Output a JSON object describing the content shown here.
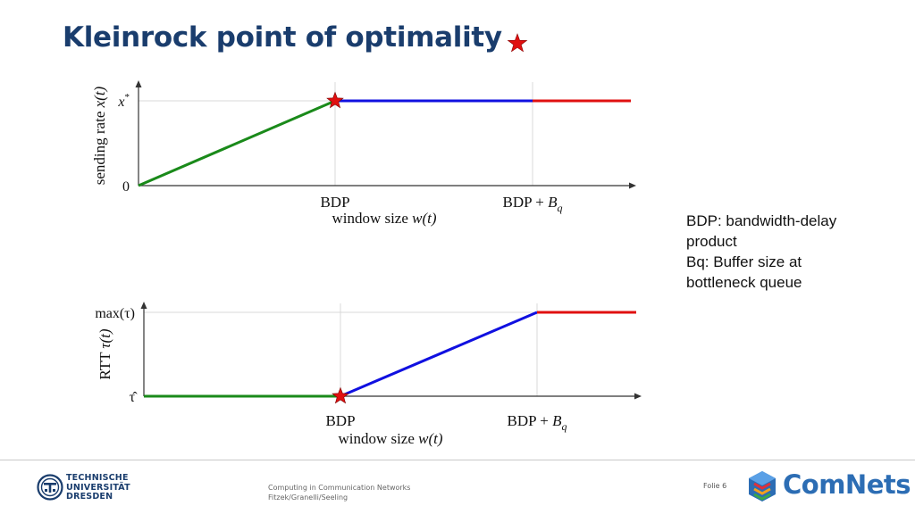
{
  "slide": {
    "title": "Kleinrock point of optimality"
  },
  "chart_data": [
    {
      "type": "line",
      "xlabel_text": "window size ",
      "xlabel_var": "w(t)",
      "ylabel_text": "sending rate ",
      "ylabel_var": "x(t)",
      "x_ticks": [
        {
          "pre": "BDP",
          "var": "",
          "sub": ""
        },
        {
          "pre": "BDP + ",
          "var": "B",
          "sub": "q"
        }
      ],
      "y_ticks": [
        "0",
        "x*"
      ],
      "series": [
        {
          "color": "#1a8a1a",
          "points": [
            [
              0,
              0
            ],
            [
              1,
              1
            ]
          ]
        },
        {
          "color": "#1010e0",
          "points": [
            [
              1,
              1
            ],
            [
              2,
              1
            ]
          ]
        },
        {
          "color": "#e01010",
          "points": [
            [
              2,
              1
            ],
            [
              2.5,
              1
            ]
          ]
        }
      ],
      "marker": {
        "at": [
          1,
          1
        ],
        "color": "#e01010"
      },
      "xlim": [
        0,
        2.5
      ],
      "ylim": [
        0,
        1
      ]
    },
    {
      "type": "line",
      "xlabel_text": "window size ",
      "xlabel_var": "w(t)",
      "ylabel_text": "RTT ",
      "ylabel_var": "τ(t)",
      "x_ticks": [
        {
          "pre": "BDP",
          "var": "",
          "sub": ""
        },
        {
          "pre": "BDP + ",
          "var": "B",
          "sub": "q"
        }
      ],
      "y_ticks": [
        "τ̂",
        "max(τ)"
      ],
      "series": [
        {
          "color": "#1a8a1a",
          "points": [
            [
              0,
              0
            ],
            [
              1,
              0
            ]
          ]
        },
        {
          "color": "#1010e0",
          "points": [
            [
              1,
              0
            ],
            [
              2,
              1
            ]
          ]
        },
        {
          "color": "#e01010",
          "points": [
            [
              2,
              1
            ],
            [
              2.5,
              1
            ]
          ]
        }
      ],
      "marker": {
        "at": [
          1,
          0
        ],
        "color": "#e01010"
      },
      "xlim": [
        0,
        2.5
      ],
      "ylim": [
        0,
        1
      ]
    }
  ],
  "legend": {
    "lines": [
      "BDP: bandwidth-delay",
      "product",
      "Bq: Buffer size at",
      "bottleneck queue"
    ]
  },
  "footer": {
    "tud": [
      "TECHNISCHE",
      "UNIVERSITÄT",
      "DRESDEN"
    ],
    "course": "Computing in Communication Networks",
    "authors": "Fitzek/Granelli/Seeling",
    "folie": "Folie 6",
    "brand": "ComNets"
  },
  "colors": {
    "title": "#1a3d6d",
    "brand": "#2c6db4",
    "star": "#e01010"
  },
  "icons": {
    "title_star": "star-icon",
    "tud_logo": "tud-logo-icon",
    "comnets_logo": "comnets-cube-icon"
  }
}
